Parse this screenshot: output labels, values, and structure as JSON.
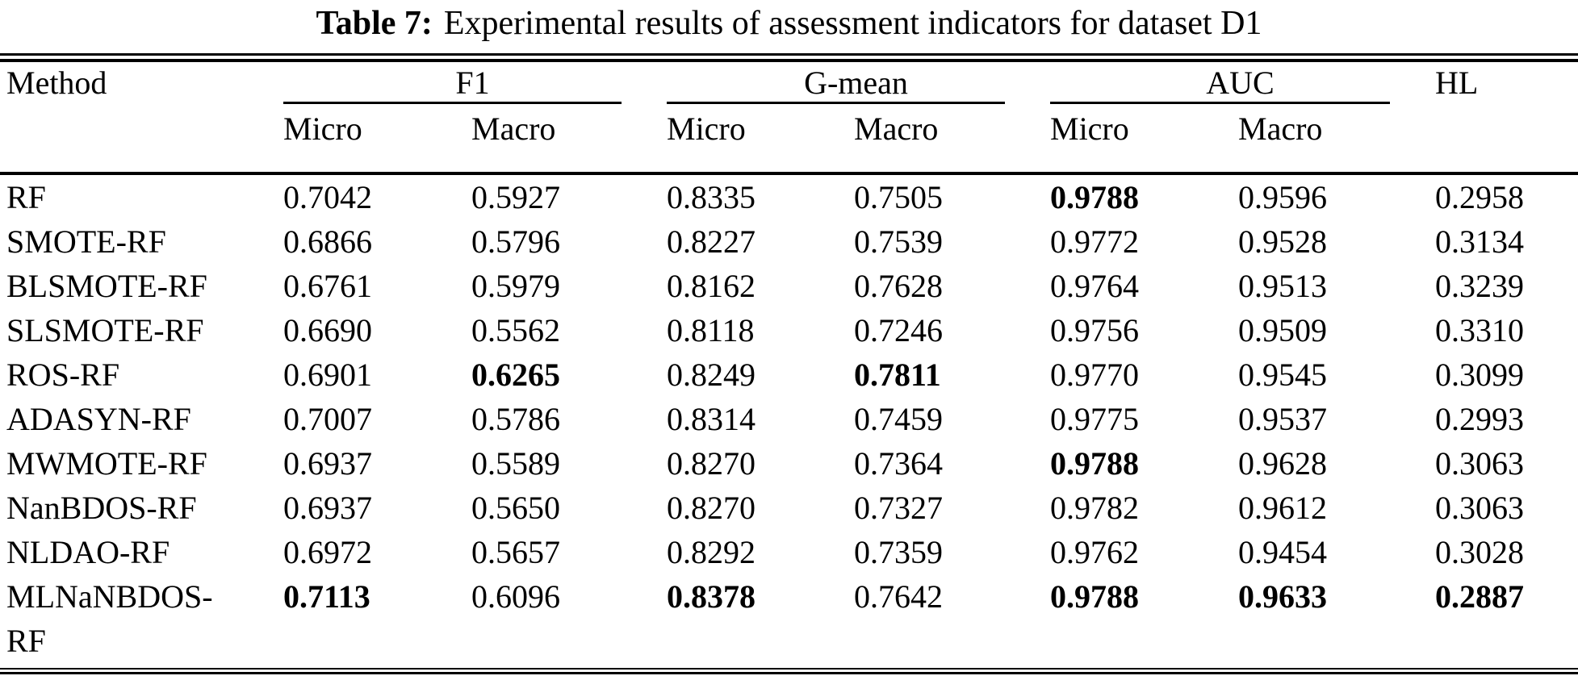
{
  "title": {
    "prefix": "Table 7:",
    "text": "Experimental results of assessment indicators for dataset D1"
  },
  "table": {
    "columns": {
      "method": "Method",
      "hl": "HL",
      "groups": [
        "F1",
        "G-mean",
        "AUC"
      ],
      "sub": [
        "Micro",
        "Macro"
      ]
    },
    "value_column_order": [
      "F1 Micro",
      "F1 Macro",
      "G-mean Micro",
      "G-mean Macro",
      "AUC Micro",
      "AUC Macro",
      "HL"
    ],
    "rows": [
      {
        "method": "RF",
        "values": [
          "0.7042",
          "0.5927",
          "0.8335",
          "0.7505",
          "0.9788",
          "0.9596",
          "0.2958"
        ],
        "bold": [
          0,
          0,
          0,
          0,
          1,
          0,
          0
        ]
      },
      {
        "method": "SMOTE-RF",
        "values": [
          "0.6866",
          "0.5796",
          "0.8227",
          "0.7539",
          "0.9772",
          "0.9528",
          "0.3134"
        ],
        "bold": [
          0,
          0,
          0,
          0,
          0,
          0,
          0
        ]
      },
      {
        "method": "BLSMOTE-RF",
        "values": [
          "0.6761",
          "0.5979",
          "0.8162",
          "0.7628",
          "0.9764",
          "0.9513",
          "0.3239"
        ],
        "bold": [
          0,
          0,
          0,
          0,
          0,
          0,
          0
        ]
      },
      {
        "method": "SLSMOTE-RF",
        "values": [
          "0.6690",
          "0.5562",
          "0.8118",
          "0.7246",
          "0.9756",
          "0.9509",
          "0.3310"
        ],
        "bold": [
          0,
          0,
          0,
          0,
          0,
          0,
          0
        ]
      },
      {
        "method": "ROS-RF",
        "values": [
          "0.6901",
          "0.6265",
          "0.8249",
          "0.7811",
          "0.9770",
          "0.9545",
          "0.3099"
        ],
        "bold": [
          0,
          1,
          0,
          1,
          0,
          0,
          0
        ]
      },
      {
        "method": "ADASYN-RF",
        "values": [
          "0.7007",
          "0.5786",
          "0.8314",
          "0.7459",
          "0.9775",
          "0.9537",
          "0.2993"
        ],
        "bold": [
          0,
          0,
          0,
          0,
          0,
          0,
          0
        ]
      },
      {
        "method": "MWMOTE-RF",
        "values": [
          "0.6937",
          "0.5589",
          "0.8270",
          "0.7364",
          "0.9788",
          "0.9628",
          "0.3063"
        ],
        "bold": [
          0,
          0,
          0,
          0,
          1,
          0,
          0
        ]
      },
      {
        "method": "NanBDOS-RF",
        "values": [
          "0.6937",
          "0.5650",
          "0.8270",
          "0.7327",
          "0.9782",
          "0.9612",
          "0.3063"
        ],
        "bold": [
          0,
          0,
          0,
          0,
          0,
          0,
          0
        ]
      },
      {
        "method": "NLDAO-RF",
        "values": [
          "0.6972",
          "0.5657",
          "0.8292",
          "0.7359",
          "0.9762",
          "0.9454",
          "0.3028"
        ],
        "bold": [
          0,
          0,
          0,
          0,
          0,
          0,
          0
        ]
      },
      {
        "method": "MLNaNBDOS-RF",
        "values": [
          "0.7113",
          "0.6096",
          "0.8378",
          "0.7642",
          "0.9788",
          "0.9633",
          "0.2887"
        ],
        "bold": [
          1,
          0,
          1,
          0,
          1,
          1,
          1
        ]
      }
    ]
  }
}
